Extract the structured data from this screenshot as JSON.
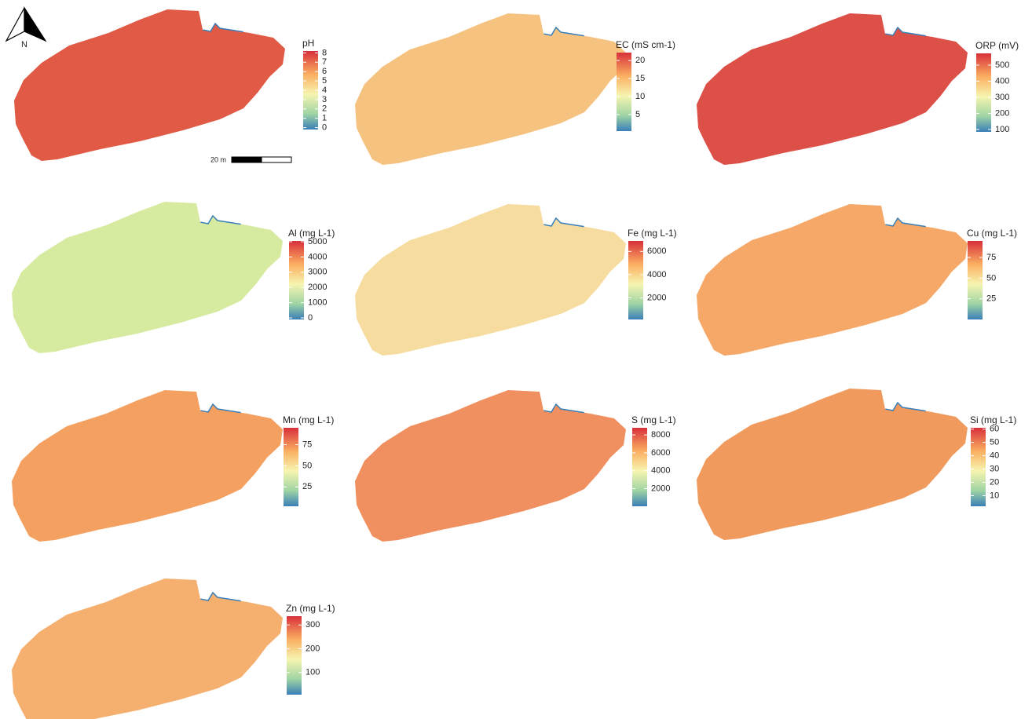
{
  "north_label": "N",
  "scale_bar_label": "20 m",
  "panels": [
    {
      "title": "pH",
      "color": "#e05a45",
      "lim": [
        -0.2,
        8.2
      ],
      "ticks": [
        0,
        1,
        2,
        3,
        4,
        5,
        6,
        7,
        8
      ]
    },
    {
      "title": "EC (mS cm-1)",
      "color": "#f6c27f",
      "lim": [
        0.4,
        22.2
      ],
      "ticks": [
        5,
        10,
        15,
        20
      ]
    },
    {
      "title": "ORP (mV)",
      "color": "#dc5048",
      "lim": [
        85,
        573
      ],
      "ticks": [
        100,
        200,
        300,
        400,
        500
      ]
    },
    {
      "title": "Al (mg L-1)",
      "color": "#d6eaa0",
      "lim": [
        -100,
        5050
      ],
      "ticks": [
        0,
        1000,
        2000,
        3000,
        4000,
        5000
      ]
    },
    {
      "title": "Fe (mg L-1)",
      "color": "#f7dca0",
      "lim": [
        140,
        6900
      ],
      "ticks": [
        2000,
        4000,
        6000
      ]
    },
    {
      "title": "Cu (mg L-1)",
      "color": "#f5a868",
      "lim": [
        0,
        95
      ],
      "ticks": [
        25,
        50,
        75
      ]
    },
    {
      "title": "Mn (mg L-1)",
      "color": "#f4a060",
      "lim": [
        2,
        95
      ],
      "ticks": [
        25,
        50,
        75
      ]
    },
    {
      "title": "S (mg L-1)",
      "color": "#f09060",
      "lim": [
        30,
        8800
      ],
      "ticks": [
        2000,
        4000,
        6000,
        8000
      ]
    },
    {
      "title": "Si (mg L-1)",
      "color": "#f09a5e",
      "lim": [
        2,
        61
      ],
      "ticks": [
        10,
        20,
        30,
        40,
        50,
        60
      ]
    },
    {
      "title": "Zn (mg L-1)",
      "color": "#f5b070",
      "lim": [
        7,
        337
      ],
      "ticks": [
        100,
        200,
        300
      ]
    }
  ]
}
